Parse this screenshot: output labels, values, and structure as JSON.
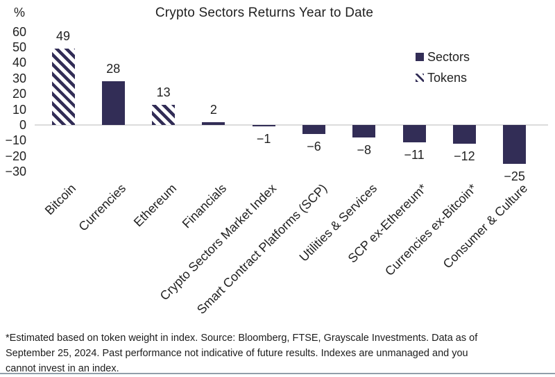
{
  "chart_data": {
    "type": "bar",
    "title": "Crypto Sectors Returns Year to Date",
    "ylabel": "%",
    "xlabel": "",
    "categories": [
      "Bitcoin",
      "Currencies",
      "Ethereum",
      "Financials",
      "Crypto Sectors Market Index",
      "Smart Contract Platforms (SCP)",
      "Utilities & Services",
      "SCP ex-Ethereum*",
      "Currencies ex-Bitcoin*",
      "Consumer & Culture"
    ],
    "series": [
      {
        "name": "Returns year to date (%)",
        "values": [
          49,
          28,
          13,
          2,
          -1,
          -6,
          -8,
          -11,
          -12,
          -25
        ]
      }
    ],
    "bar_styles": [
      "tokens",
      "sectors",
      "tokens",
      "sectors",
      "sectors",
      "sectors",
      "sectors",
      "sectors",
      "sectors",
      "sectors"
    ],
    "value_labels": [
      "49",
      "28",
      "13",
      "2",
      "−1",
      "−6",
      "−8",
      "−11",
      "−12",
      "−25"
    ],
    "yticks": [
      "60",
      "50",
      "40",
      "30",
      "20",
      "10",
      "0",
      "−10",
      "−20",
      "−30"
    ],
    "ytick_values": [
      60,
      50,
      40,
      30,
      20,
      10,
      0,
      -10,
      -20,
      -30
    ],
    "ylim": [
      -30,
      60
    ],
    "grid": false,
    "legend": {
      "position": "upper right",
      "entries": [
        {
          "label": "Sectors",
          "style": "sectors"
        },
        {
          "label": "Tokens",
          "style": "tokens"
        }
      ]
    }
  },
  "colors": {
    "bar_navy": "#322d56",
    "axis_line": "#dcdcdc",
    "text": "#212121",
    "footer_text": "#1c1c1c",
    "footer_rule": "#919ea9",
    "background": "#ffffff"
  },
  "footer": {
    "lines": [
      "*Estimated based on token weight in index. Source: Bloomberg, FTSE, Grayscale Investments. Data as of",
      "September 25, 2024. Past performance not indicative of future results. Indexes are unmanaged and you",
      "cannot invest in an index."
    ]
  }
}
